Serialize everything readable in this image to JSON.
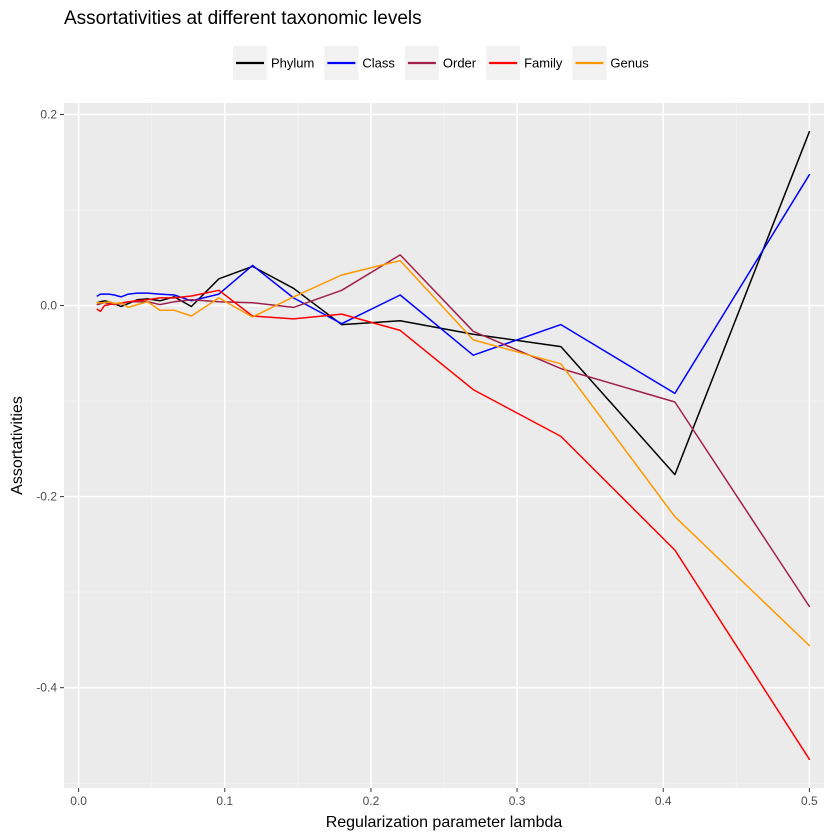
{
  "chart_data": {
    "type": "line",
    "title": "Assortativities at different taxonomic levels",
    "xlabel": "Regularization parameter lambda",
    "ylabel": "Assortativities",
    "xlim": [
      -0.01,
      0.51
    ],
    "ylim": [
      -0.505,
      0.212
    ],
    "x_ticks": [
      0.0,
      0.1,
      0.2,
      0.3,
      0.4,
      0.5
    ],
    "x_tick_labels": [
      "0.0",
      "0.1",
      "0.2",
      "0.3",
      "0.4",
      "0.5"
    ],
    "y_ticks": [
      -0.4,
      -0.2,
      0.0,
      0.2
    ],
    "y_tick_labels": [
      "-0.4",
      "-0.2",
      "0.0",
      "0.2"
    ],
    "grid": true,
    "legend_position": "top",
    "series": [
      {
        "name": "Phylum",
        "color": "#000000",
        "x": [
          0.0128,
          0.015,
          0.0177,
          0.0208,
          0.0245,
          0.0289,
          0.034,
          0.0401,
          0.0472,
          0.0556,
          0.0655,
          0.0772,
          0.096,
          0.119,
          0.147,
          0.18,
          0.22,
          0.27,
          0.33,
          0.408,
          0.5
        ],
        "y": [
          0.003,
          0.004,
          0.005,
          0.004,
          0.002,
          -0.001,
          0.002,
          0.006,
          0.007,
          0.005,
          0.009,
          -0.001,
          0.028,
          0.041,
          0.018,
          -0.02,
          -0.016,
          -0.03,
          -0.043,
          -0.177,
          0.182
        ]
      },
      {
        "name": "Class",
        "color": "#0000ff",
        "x": [
          0.0128,
          0.015,
          0.0177,
          0.0208,
          0.0245,
          0.0289,
          0.034,
          0.0401,
          0.0472,
          0.0556,
          0.0655,
          0.0772,
          0.096,
          0.119,
          0.147,
          0.18,
          0.22,
          0.27,
          0.33,
          0.408,
          0.5
        ],
        "y": [
          0.01,
          0.012,
          0.012,
          0.012,
          0.011,
          0.009,
          0.012,
          0.013,
          0.013,
          0.012,
          0.011,
          0.005,
          0.012,
          0.042,
          0.008,
          -0.019,
          0.011,
          -0.052,
          -0.02,
          -0.092,
          0.137
        ]
      },
      {
        "name": "Order",
        "color": "#a0204a",
        "x": [
          0.0128,
          0.0177,
          0.0245,
          0.034,
          0.0472,
          0.0556,
          0.0655,
          0.0772,
          0.096,
          0.119,
          0.147,
          0.18,
          0.22,
          0.27,
          0.33,
          0.408,
          0.5
        ],
        "y": [
          0.001,
          0.003,
          0.001,
          0.004,
          0.004,
          0.001,
          0.004,
          0.006,
          0.004,
          0.003,
          -0.002,
          0.016,
          0.053,
          -0.027,
          -0.066,
          -0.101,
          -0.315
        ]
      },
      {
        "name": "Family",
        "color": "#ff0000",
        "x": [
          0.0128,
          0.015,
          0.0177,
          0.0208,
          0.0245,
          0.0289,
          0.034,
          0.0401,
          0.0472,
          0.0556,
          0.0655,
          0.0772,
          0.096,
          0.119,
          0.147,
          0.18,
          0.22,
          0.27,
          0.33,
          0.408,
          0.5
        ],
        "y": [
          -0.004,
          -0.006,
          0.0,
          0.001,
          0.002,
          0.002,
          0.004,
          0.005,
          0.006,
          0.008,
          0.008,
          0.01,
          0.016,
          -0.011,
          -0.014,
          -0.009,
          -0.026,
          -0.088,
          -0.137,
          -0.256,
          -0.475
        ]
      },
      {
        "name": "Genus",
        "color": "#ff9900",
        "x": [
          0.0128,
          0.015,
          0.0177,
          0.0208,
          0.0245,
          0.0289,
          0.034,
          0.0401,
          0.0472,
          0.0556,
          0.0655,
          0.0772,
          0.096,
          0.119,
          0.147,
          0.18,
          0.22,
          0.27,
          0.33,
          0.408,
          0.5
        ],
        "y": [
          0.003,
          0.003,
          0.003,
          0.004,
          0.002,
          0.003,
          -0.002,
          0.001,
          0.004,
          -0.005,
          -0.005,
          -0.011,
          0.008,
          -0.012,
          0.009,
          0.032,
          0.047,
          -0.036,
          -0.061,
          -0.221,
          -0.356
        ]
      }
    ]
  }
}
